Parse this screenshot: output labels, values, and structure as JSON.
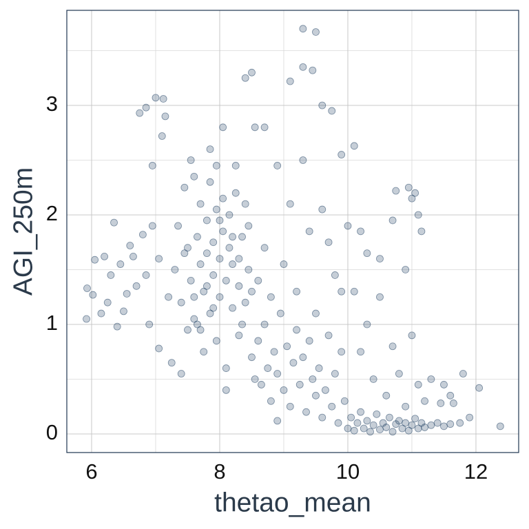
{
  "chart_data": {
    "type": "scatter",
    "x_label": "thetao_mean",
    "y_label": "AGI_250m",
    "xlim": [
      5.613,
      12.667
    ],
    "ylim": [
      -0.17,
      3.868
    ],
    "xticks": [
      6,
      8,
      10,
      12
    ],
    "yticks": [
      0,
      1,
      2,
      3
    ],
    "xminorticks": [
      7,
      9,
      11
    ],
    "yminorticks": [
      0.5,
      1.5,
      2.5,
      3.5
    ],
    "grid": true,
    "color": "#1b3d5e",
    "x": [
      5.92,
      5.93,
      6.02,
      6.05,
      6.2,
      6.3,
      6.35,
      6.45,
      6.5,
      6.6,
      6.7,
      6.75,
      6.8,
      6.85,
      6.9,
      6.95,
      7.0,
      7.05,
      7.1,
      7.12,
      7.15,
      7.2,
      6.25,
      6.4,
      6.55,
      6.65,
      6.85,
      6.95,
      7.05,
      6.15,
      7.3,
      7.35,
      7.4,
      7.45,
      7.5,
      7.5,
      7.55,
      7.6,
      7.6,
      7.65,
      7.7,
      7.7,
      7.75,
      7.75,
      7.8,
      7.8,
      7.85,
      7.85,
      7.9,
      7.9,
      7.95,
      7.95,
      8.0,
      8.0,
      8.05,
      8.05,
      8.1,
      8.1,
      8.15,
      8.15,
      8.2,
      8.2,
      8.25,
      8.3,
      8.3,
      8.35,
      8.4,
      8.4,
      8.45,
      8.5,
      7.25,
      7.4,
      7.55,
      7.65,
      7.85,
      7.95,
      8.05,
      8.1,
      8.25,
      8.35,
      7.45,
      7.6,
      7.7,
      7.8,
      7.9,
      8.0,
      8.2,
      8.3,
      8.45,
      8.5,
      8.55,
      8.6,
      8.65,
      8.7,
      8.75,
      8.8,
      8.85,
      8.9,
      8.95,
      9.0,
      9.05,
      9.1,
      9.15,
      9.2,
      9.25,
      9.3,
      9.35,
      9.4,
      9.45,
      9.5,
      9.55,
      9.6,
      9.65,
      9.7,
      9.75,
      9.8,
      9.85,
      9.9,
      9.95,
      8.9,
      8.6,
      8.7,
      8.8,
      8.9,
      9.0,
      9.1,
      9.2,
      9.3,
      9.4,
      9.5,
      8.4,
      8.5,
      8.55,
      8.7,
      9.1,
      9.3,
      9.3,
      9.45,
      9.5,
      9.6,
      9.75,
      9.9,
      10.1,
      9.8,
      9.9,
      9.7,
      9.6,
      10.0,
      10.2,
      10.3,
      10.0,
      10.05,
      10.1,
      10.15,
      10.2,
      10.25,
      10.3,
      10.35,
      10.4,
      10.45,
      10.5,
      10.55,
      10.6,
      10.65,
      10.7,
      10.75,
      10.8,
      10.85,
      10.9,
      10.95,
      11.0,
      11.05,
      11.1,
      11.15,
      11.2,
      11.3,
      11.4,
      11.5,
      11.6,
      11.75,
      10.2,
      10.4,
      10.5,
      10.6,
      10.7,
      10.8,
      10.9,
      11.0,
      11.1,
      11.2,
      10.3,
      10.5,
      10.7,
      10.75,
      10.95,
      11.05,
      11.1,
      11.15,
      11.0,
      10.9,
      11.3,
      11.5,
      11.6,
      11.65,
      11.8,
      11.9,
      12.05,
      12.38,
      11.45,
      10.1
    ],
    "values": [
      1.05,
      1.33,
      1.27,
      1.59,
      1.62,
      1.45,
      1.93,
      1.55,
      1.12,
      1.72,
      1.35,
      2.93,
      1.82,
      2.98,
      1.0,
      2.45,
      3.07,
      1.6,
      2.72,
      3.06,
      2.9,
      1.25,
      1.2,
      0.98,
      1.28,
      1.62,
      1.45,
      1.9,
      0.78,
      1.1,
      1.5,
      1.9,
      1.2,
      2.25,
      1.7,
      0.95,
      1.4,
      2.35,
      1.05,
      1.8,
      1.55,
      2.1,
      1.3,
      0.75,
      1.95,
      1.65,
      2.3,
      1.1,
      1.75,
      1.45,
      2.05,
      0.85,
      1.6,
      1.25,
      2.15,
      1.85,
      1.4,
      0.6,
      1.7,
      2.0,
      1.15,
      1.55,
      2.2,
      1.35,
      0.9,
      1.8,
      2.1,
      1.2,
      1.5,
      0.7,
      0.65,
      0.55,
      2.5,
      1.0,
      2.6,
      2.45,
      2.8,
      0.4,
      2.45,
      1.0,
      1.65,
      1.25,
      0.95,
      1.35,
      1.15,
      1.95,
      1.8,
      1.6,
      1.9,
      1.3,
      0.5,
      0.85,
      0.45,
      1.0,
      0.6,
      0.3,
      0.75,
      0.55,
      1.1,
      0.4,
      0.8,
      0.25,
      0.65,
      0.95,
      0.45,
      0.7,
      0.2,
      0.85,
      0.5,
      0.35,
      0.6,
      0.15,
      0.4,
      0.9,
      0.25,
      0.55,
      0.1,
      0.75,
      0.3,
      0.12,
      1.4,
      1.7,
      1.25,
      2.45,
      1.55,
      2.1,
      1.3,
      2.5,
      1.85,
      1.1,
      3.25,
      3.3,
      2.8,
      2.8,
      3.22,
      3.35,
      3.7,
      3.32,
      3.67,
      3.0,
      2.95,
      2.55,
      2.63,
      1.45,
      1.3,
      1.75,
      2.05,
      1.9,
      1.85,
      1.65,
      0.05,
      0.15,
      0.03,
      0.1,
      0.2,
      0.05,
      0.12,
      0.02,
      0.08,
      0.18,
      0.04,
      0.1,
      0.06,
      0.15,
      0.02,
      0.09,
      0.12,
      0.05,
      0.1,
      0.03,
      0.08,
      0.14,
      0.05,
      0.1,
      0.06,
      0.08,
      0.1,
      0.07,
      0.09,
      0.1,
      0.75,
      0.5,
      1.25,
      0.35,
      0.8,
      0.55,
      0.25,
      0.9,
      0.45,
      0.3,
      1.0,
      1.6,
      1.95,
      2.22,
      2.25,
      2.2,
      2.0,
      1.85,
      2.15,
      1.5,
      0.5,
      0.45,
      0.35,
      0.28,
      0.55,
      0.15,
      0.42,
      0.07,
      0.28,
      1.3
    ]
  }
}
